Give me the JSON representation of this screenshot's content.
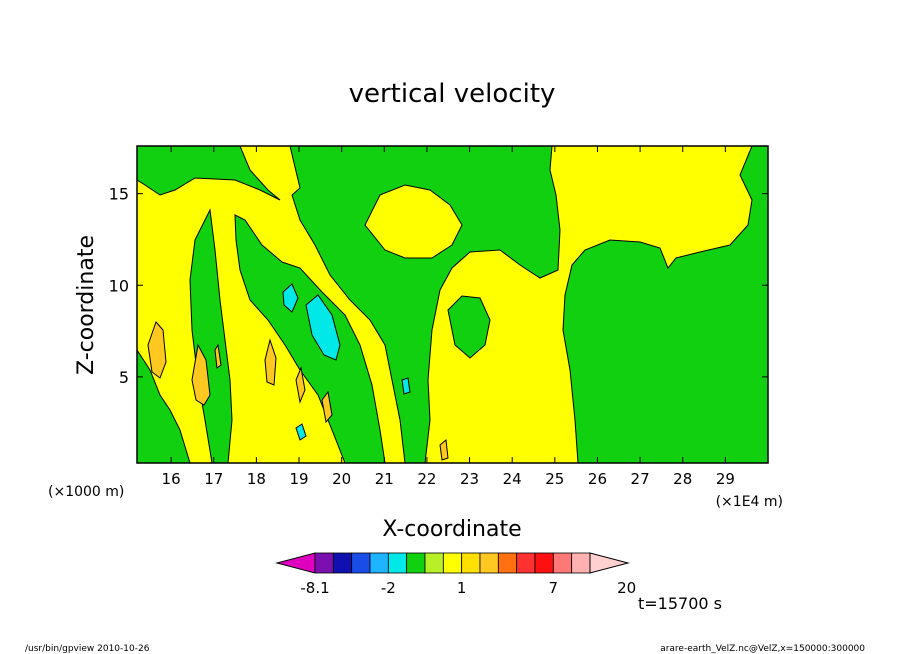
{
  "chart_data": {
    "type": "heatmap",
    "title": "vertical velocity",
    "xlabel": "X-coordinate",
    "ylabel": "Z-coordinate",
    "x_unit_label": "(×1E4 m)",
    "y_unit_label": "(×1000 m)",
    "xlim": [
      15.2,
      30.0
    ],
    "ylim": [
      0.3,
      17.6
    ],
    "xticks": [
      "16",
      "17",
      "18",
      "19",
      "20",
      "21",
      "22",
      "23",
      "24",
      "25",
      "26",
      "27",
      "28",
      "29"
    ],
    "yticks": [
      "5",
      "10",
      "15"
    ],
    "time_label": "t=15700 s",
    "colorbar": {
      "levels": [
        -8.1,
        -6,
        -4,
        -3,
        -2,
        -1,
        0,
        0.5,
        1,
        1.5,
        2,
        3,
        5,
        7,
        10,
        12,
        15,
        20
      ],
      "colors": [
        "#e000c0",
        "#7a10b0",
        "#1010b0",
        "#1a4de8",
        "#1eb4ff",
        "#00e8e8",
        "#10d010",
        "#b8f028",
        "#ffff00",
        "#ffe000",
        "#ffc820",
        "#ff7010",
        "#ff3030",
        "#ff1010",
        "#ff7878",
        "#ffb0b0",
        "#ffd0d0"
      ],
      "tick_labels": [
        {
          "value": -8.1,
          "label": "-8.1"
        },
        {
          "value": -2,
          "label": "-2"
        },
        {
          "value": 1,
          "label": "1"
        },
        {
          "value": 7,
          "label": "7"
        },
        {
          "value": 20,
          "label": "20"
        }
      ]
    },
    "regions": [
      {
        "class": "updraft_weak",
        "color": "#ffff00",
        "x": [
          15.2,
          30.0
        ],
        "z": [
          0.3,
          17.6
        ]
      },
      {
        "class": "downdraft_weak",
        "color": "#10d010",
        "x": [
          25.4,
          29.6
        ],
        "z": [
          0.3,
          12.0
        ]
      },
      {
        "class": "downdraft_weak",
        "color": "#10d010",
        "x": [
          18.5,
          25.0
        ],
        "z": [
          9.5,
          17.6
        ]
      },
      {
        "class": "downdraft_moderate",
        "color": "#00e8e8",
        "x": [
          19.3,
          19.8
        ],
        "z": [
          6.0,
          9.0
        ]
      },
      {
        "class": "updraft_moderate",
        "color": "#ffc820",
        "x": [
          15.3,
          15.7
        ],
        "z": [
          4.3,
          8.0
        ]
      }
    ]
  },
  "footer": {
    "left": "/usr/bin/gpview   2010-10-26",
    "right": "arare-earth_VelZ.nc@VelZ,x=150000:300000"
  }
}
